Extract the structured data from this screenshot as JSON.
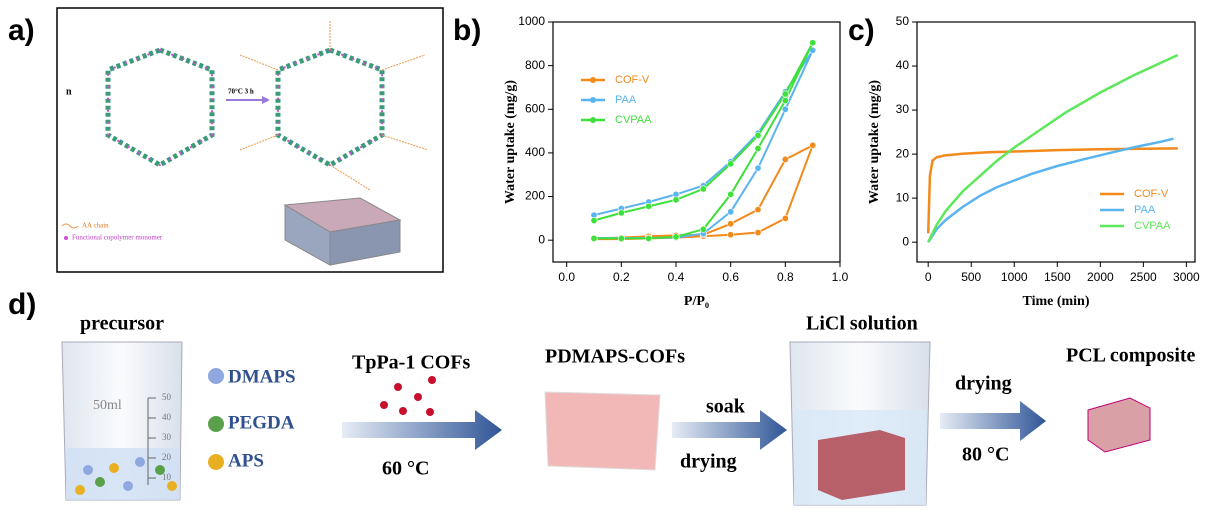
{
  "panel_labels": [
    "a)",
    "b)",
    "c)",
    "d)"
  ],
  "panel_a": {
    "reagent": "n",
    "reaction": "70°C 3 h",
    "legend": [
      "AA chain",
      "Functional copolymer monomer"
    ]
  },
  "chart_data": [
    {
      "type": "line",
      "xlabel": "P/P₀",
      "ylabel": "Water uptake (mg/g)",
      "xlim": [
        -0.05,
        1.0
      ],
      "ylim": [
        -100,
        1000
      ],
      "xticks": [
        {
          "value": 0,
          "label": "0.0"
        },
        0.2,
        0.4,
        0.6,
        0.8,
        {
          "value": 1,
          "label": "1.0"
        }
      ],
      "yticks": [
        0,
        200,
        400,
        600,
        800,
        1000
      ],
      "markers": true,
      "legend": "upper left",
      "series": [
        {
          "name": "COF-V",
          "color": "#f28a1c",
          "x": [
            0.1,
            0.2,
            0.3,
            0.4,
            0.5,
            0.6,
            0.7,
            0.8,
            0.9,
            0.8,
            0.7,
            0.6,
            0.5,
            0.4,
            0.3,
            0.2,
            0.1
          ],
          "values": [
            5,
            5,
            8,
            12,
            18,
            25,
            35,
            100,
            435,
            370,
            140,
            75,
            25,
            22,
            18,
            12,
            8
          ]
        },
        {
          "name": "PAA",
          "color": "#5ab4f0",
          "x": [
            0.1,
            0.2,
            0.3,
            0.4,
            0.5,
            0.6,
            0.7,
            0.8,
            0.9,
            0.8,
            0.7,
            0.6,
            0.5,
            0.4,
            0.3,
            0.2,
            0.1
          ],
          "values": [
            10,
            10,
            10,
            12,
            30,
            130,
            330,
            600,
            870,
            680,
            490,
            360,
            250,
            210,
            175,
            145,
            115
          ]
        },
        {
          "name": "CVPAA",
          "color": "#3ee03a",
          "x": [
            0.1,
            0.2,
            0.3,
            0.4,
            0.5,
            0.6,
            0.7,
            0.8,
            0.9,
            0.8,
            0.7,
            0.6,
            0.5,
            0.4,
            0.3,
            0.2,
            0.1
          ],
          "values": [
            8,
            8,
            8,
            15,
            50,
            210,
            420,
            640,
            905,
            670,
            480,
            350,
            235,
            185,
            155,
            125,
            90
          ]
        }
      ]
    },
    {
      "type": "line",
      "xlabel": "Time (min)",
      "ylabel": "Water uptake (mg/g)",
      "xlim": [
        -130,
        3100
      ],
      "ylim": [
        -4.5,
        50
      ],
      "xticks": [
        0,
        500,
        1000,
        1500,
        2000,
        2500,
        3000
      ],
      "yticks": [
        0,
        10,
        20,
        30,
        40,
        50
      ],
      "markers": false,
      "legend": "lower right",
      "series": [
        {
          "name": "COF-V",
          "color": "#f28a1c",
          "x": [
            0,
            20,
            50,
            100,
            200,
            400,
            700,
            1000,
            1500,
            2000,
            2500,
            2900
          ],
          "values": [
            2,
            15,
            18.5,
            19.3,
            19.7,
            20.1,
            20.4,
            20.6,
            20.9,
            21.1,
            21.2,
            21.3
          ]
        },
        {
          "name": "PAA",
          "color": "#5ab4f0",
          "x": [
            0,
            100,
            200,
            400,
            600,
            800,
            1000,
            1200,
            1500,
            1800,
            2100,
            2400,
            2700,
            2850
          ],
          "values": [
            0,
            3,
            5,
            8,
            10.5,
            12.5,
            14,
            15.5,
            17.3,
            18.8,
            20.2,
            21.6,
            22.8,
            23.5
          ]
        },
        {
          "name": "CVPAA",
          "color": "#5ce85a",
          "x": [
            0,
            100,
            200,
            400,
            600,
            800,
            1000,
            1300,
            1600,
            2000,
            2400,
            2900
          ],
          "values": [
            0,
            4,
            7,
            11.5,
            15,
            18.5,
            21.5,
            25.5,
            29.5,
            34,
            38,
            42.5
          ]
        }
      ]
    }
  ],
  "panel_d": {
    "precursor": "precursor",
    "beaker_volume": "50ml",
    "beaker_marks": [
      50,
      40,
      30,
      20,
      10
    ],
    "components": [
      "DMAPS",
      "PEGDA",
      "APS"
    ],
    "step1": {
      "label": "TpPa-1 COFs",
      "condition": "60 °C"
    },
    "intermediate": "PDMAPS-COFs",
    "step2": {
      "label": "soak",
      "condition": "drying"
    },
    "solution": "LiCl solution",
    "step3": {
      "label": "drying",
      "condition": "80 °C"
    },
    "product": "PCL composite"
  }
}
